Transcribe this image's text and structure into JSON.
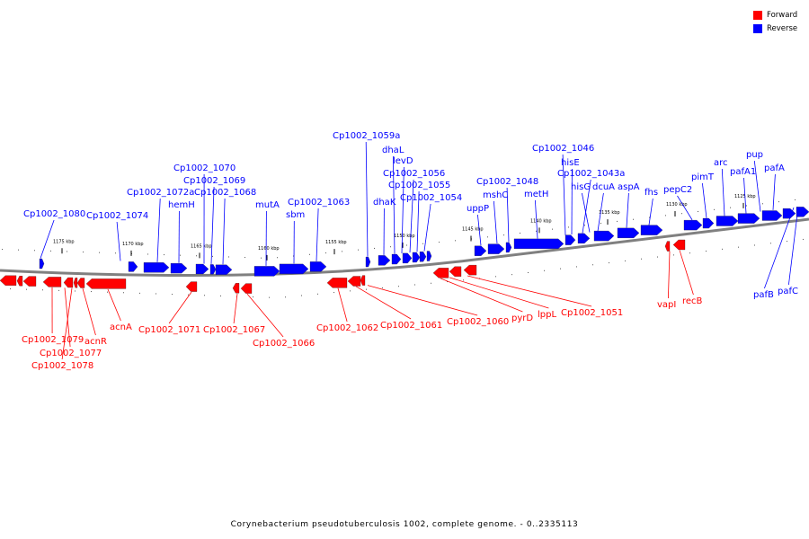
{
  "legend": [
    {
      "label": "Forward",
      "color": "#ff0000"
    },
    {
      "label": "Reverse",
      "color": "#0000ff"
    }
  ],
  "caption": "Corynebacterium pseudotuberculosis 1002, complete genome. - 0..2335113",
  "colors": {
    "forward": "#ff0000",
    "reverse": "#0000ff",
    "backbone": "#808080"
  },
  "ticks": [
    "1175 kbp",
    "1170 kbp",
    "1165 kbp",
    "1160 kbp",
    "1155 kbp",
    "1150 kbp",
    "1145 kbp",
    "1140 kbp",
    "1135 kbp",
    "1130 kbp",
    "1125 kbp"
  ],
  "reverse_labels": [
    "Cp1002_1080",
    "Cp1002_1074",
    "Cp1002_1072a",
    "hemH",
    "Cp1002_1070",
    "Cp1002_1069",
    "Cp1002_1068",
    "mutA",
    "sbm",
    "Cp1002_1063",
    "Cp1002_1059a",
    "dhaK",
    "dhaL",
    "levD",
    "Cp1002_1056",
    "Cp1002_1055",
    "Cp1002_1054",
    "uppP",
    "mshC",
    "Cp1002_1048",
    "metH",
    "Cp1002_1046",
    "hisE",
    "Cp1002_1043a",
    "hisG",
    "dcuA",
    "aspA",
    "fhs",
    "pepC2",
    "pimT",
    "arc",
    "pafA1",
    "pup",
    "pafA",
    "pafB",
    "pafC"
  ],
  "forward_labels": [
    "Cp1002_1079",
    "Cp1002_1077",
    "Cp1002_1078",
    "acnR",
    "acnA",
    "Cp1002_1071",
    "Cp1002_1067",
    "Cp1002_1066",
    "Cp1002_1062",
    "Cp1002_1061",
    "Cp1002_1060",
    "pyrD",
    "lppL",
    "Cp1002_1051",
    "vapI",
    "recB"
  ]
}
